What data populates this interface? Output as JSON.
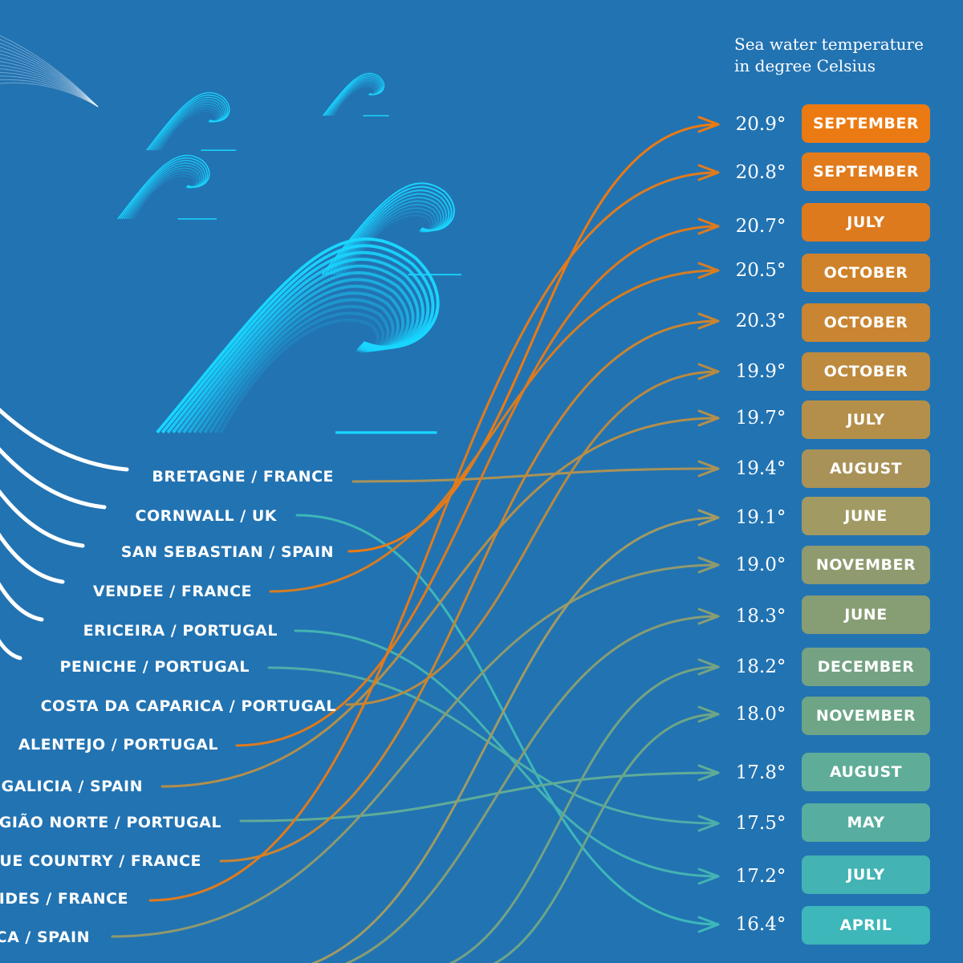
{
  "heading": {
    "line1": "Sea water temperature",
    "line2": "in degree Celsius"
  },
  "temperatures": [
    {
      "temp": "20.9°",
      "month": "SEPTEMBER",
      "color": "#ec7a12"
    },
    {
      "temp": "20.8°",
      "month": "SEPTEMBER",
      "color": "#e17b1c"
    },
    {
      "temp": "20.7°",
      "month": "JULY",
      "color": "#dd7a1e"
    },
    {
      "temp": "20.5°",
      "month": "OCTOBER",
      "color": "#cf822a"
    },
    {
      "temp": "20.3°",
      "month": "OCTOBER",
      "color": "#c98531"
    },
    {
      "temp": "19.9°",
      "month": "OCTOBER",
      "color": "#bd8a3e"
    },
    {
      "temp": "19.7°",
      "month": "JULY",
      "color": "#b48f4a"
    },
    {
      "temp": "19.4°",
      "month": "AUGUST",
      "color": "#a99258"
    },
    {
      "temp": "19.1°",
      "month": "JUNE",
      "color": "#a19a63"
    },
    {
      "temp": "19.0°",
      "month": "NOVEMBER",
      "color": "#8f9a6e"
    },
    {
      "temp": "18.3°",
      "month": "JUNE",
      "color": "#879d73"
    },
    {
      "temp": "18.2°",
      "month": "DECEMBER",
      "color": "#74a283"
    },
    {
      "temp": "18.0°",
      "month": "NOVEMBER",
      "color": "#6da586"
    },
    {
      "temp": "17.8°",
      "month": "AUGUST",
      "color": "#5fac98"
    },
    {
      "temp": "17.5°",
      "month": "MAY",
      "color": "#57ad9f"
    },
    {
      "temp": "17.2°",
      "month": "JULY",
      "color": "#43b3b3"
    },
    {
      "temp": "16.4°",
      "month": "APRIL",
      "color": "#3db7b9"
    }
  ],
  "regions": [
    {
      "name": "BRETAGNE / FRANCE",
      "target": 7,
      "color": "#a99258"
    },
    {
      "name": "CORNWALL / UK",
      "target": 16,
      "color": "#3db7b9"
    },
    {
      "name": "SAN SEBASTIAN / SPAIN",
      "target": 0,
      "color": "#ec7a12"
    },
    {
      "name": "VENDEE / FRANCE",
      "target": 3,
      "color": "#d67d22"
    },
    {
      "name": "ERICEIRA / PORTUGAL",
      "target": 15,
      "color": "#43b3b3"
    },
    {
      "name": "PENICHE / PORTUGAL",
      "target": 14,
      "color": "#4daea8"
    },
    {
      "name": "COSTA DA CAPARICA / PORTUGAL",
      "target": 5,
      "color": "#b88a40"
    },
    {
      "name": "ALENTEJO / PORTUGAL",
      "target": 2,
      "color": "#dd7a1e"
    },
    {
      "name": "GALICIA / SPAIN",
      "target": 6,
      "color": "#b48f4a"
    },
    {
      "name": "GIÃO NORTE / PORTUGAL",
      "target": 13,
      "color": "#5fac98"
    },
    {
      "name": "UE COUNTRY / FRANCE",
      "target": 4,
      "color": "#c98531"
    },
    {
      "name": "IDES / FRANCE",
      "target": 1,
      "color": "#e17b1c"
    },
    {
      "name": "CA / SPAIN",
      "target": 9,
      "color": "#8f9a6e"
    }
  ],
  "offscreen_links": [
    {
      "target": 8,
      "color": "#a19a63"
    },
    {
      "target": 10,
      "color": "#879d73"
    },
    {
      "target": 11,
      "color": "#74a283"
    },
    {
      "target": 12,
      "color": "#6da586"
    }
  ],
  "colors": {
    "background": "#2273b2",
    "wave_light": "#19d6ff",
    "arc_white": "#ffffff"
  }
}
